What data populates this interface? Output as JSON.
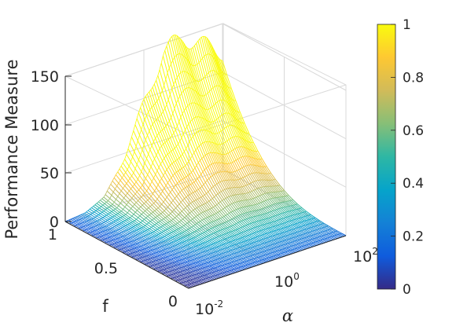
{
  "chart_data": {
    "type": "surface",
    "title": "",
    "zlabel": "Performance Measure",
    "xlabel": "α",
    "ylabel": "f",
    "x_scale": "log",
    "x_ticks": [
      {
        "base": "10",
        "exp": "-2",
        "value": 0.01
      },
      {
        "base": "10",
        "exp": "0",
        "value": 1
      },
      {
        "base": "10",
        "exp": "2",
        "value": 100
      }
    ],
    "y_ticks": [
      "0",
      "0.5",
      "1"
    ],
    "z_ticks": [
      "0",
      "50",
      "100",
      "150"
    ],
    "zlim": [
      0,
      150
    ],
    "colorbar": {
      "colormap": "parula",
      "clim": [
        0,
        1
      ],
      "ticks": [
        "0",
        "0.2",
        "0.4",
        "0.6",
        "0.8",
        "1"
      ],
      "colors": [
        "#352a87",
        "#0f5cdd",
        "#1481d6",
        "#06a4ca",
        "#2eb7a4",
        "#87bf77",
        "#d1bb59",
        "#fec832",
        "#f9fb0e"
      ]
    },
    "surface_profile": {
      "alpha_log10": [
        -2,
        -1.5,
        -1,
        -0.5,
        0,
        0.5,
        1,
        1.5,
        2
      ],
      "peak_height_at_f1": [
        0,
        2,
        12,
        45,
        95,
        140,
        150,
        135,
        120
      ]
    },
    "grid": true
  }
}
